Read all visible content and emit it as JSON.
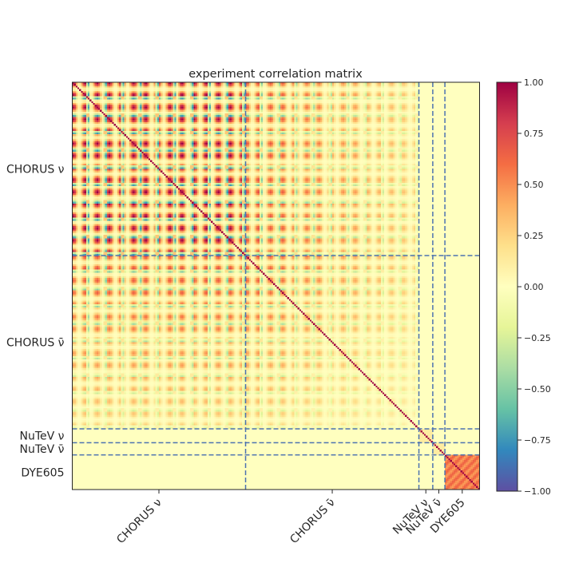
{
  "chart_data": {
    "type": "heatmap",
    "title": "experiment correlation matrix",
    "xlabel": "",
    "ylabel": "",
    "grid": false,
    "colormap": "Spectral_r",
    "vmin": -1.0,
    "vmax": 1.0,
    "colorbar_ticks": [
      "1.00",
      "0.75",
      "0.50",
      "0.25",
      "0.00",
      "−0.25",
      "−0.50",
      "−0.75",
      "−1.00"
    ],
    "colorbar_tick_values": [
      1.0,
      0.75,
      0.5,
      0.25,
      0.0,
      -0.25,
      -0.5,
      -0.75,
      -1.0
    ],
    "blocks": [
      {
        "label": "CHORUS ν",
        "points": 100
      },
      {
        "label": "CHORUS ν̄",
        "points": 100
      },
      {
        "label": "NuTeV ν",
        "points": 8
      },
      {
        "label": "NuTeV ν̄",
        "points": 7
      },
      {
        "label": "DYE605",
        "points": 20
      }
    ],
    "block_correlation_notes": {
      "CHORUS": "strong positive correlations (up to 1.00) within and across CHORUS ν and ν̄ blocks, with periodic bands of values near -0.3 to -0.5",
      "NuTeV": "weak correlations, near 0.1",
      "DYE605": "moderate positive correlations, around 0.5 to 0.6",
      "off_block": 0.0,
      "diagonal": 1.0
    },
    "separators": "dashed lines at block boundaries, colour #4c72b0"
  }
}
